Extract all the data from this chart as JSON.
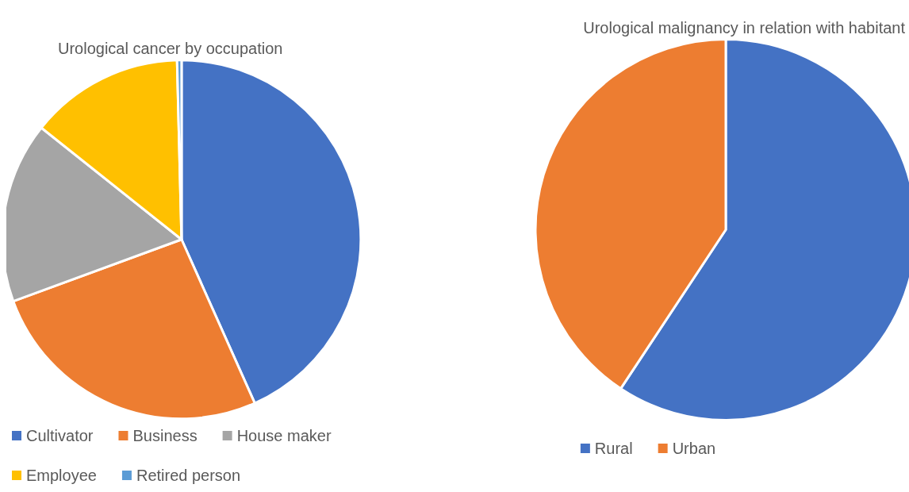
{
  "chart_data": [
    {
      "type": "pie",
      "title": "Urological cancer by occupation",
      "categories": [
        "Cultivator",
        "Business",
        "House maker",
        "Employee",
        "Retired person"
      ],
      "values": [
        43.3,
        26.1,
        16.3,
        13.9,
        0.4
      ],
      "colors": [
        "#4472c4",
        "#ed7d31",
        "#a5a5a5",
        "#ffc000",
        "#5b9bd5"
      ],
      "legend": "bottom"
    },
    {
      "type": "pie",
      "title": "Urological malignancy in relation with habitant",
      "categories": [
        "Rural",
        "Urban"
      ],
      "values": [
        59.3,
        40.7
      ],
      "colors": [
        "#4472c4",
        "#ed7d31"
      ],
      "legend": "bottom"
    }
  ]
}
